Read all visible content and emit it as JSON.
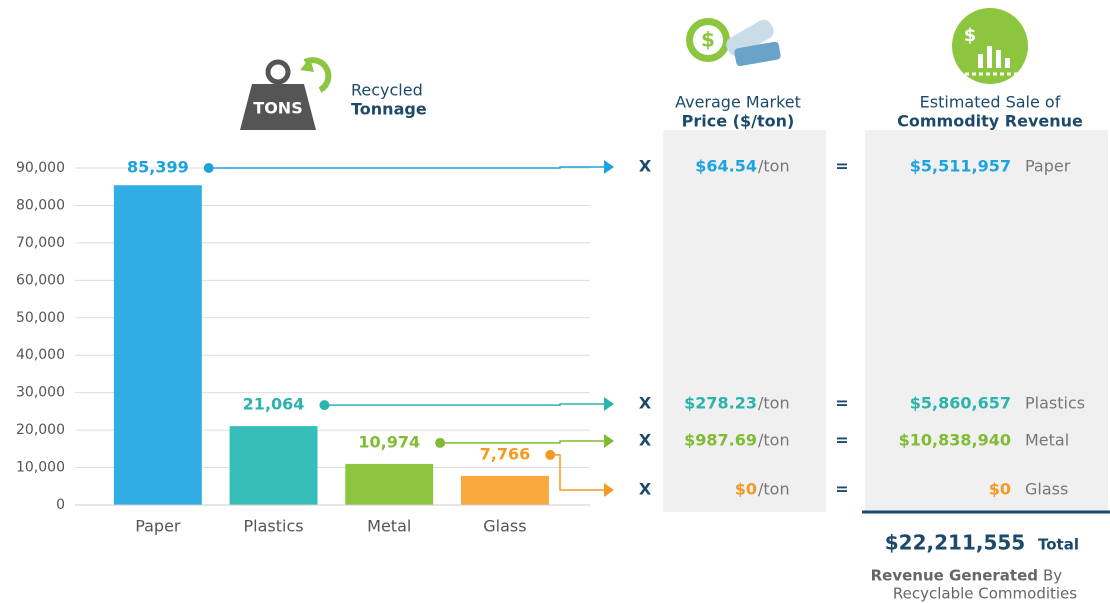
{
  "chart_data": {
    "type": "bar",
    "heading": [
      "Recycled",
      "Tonnage"
    ],
    "icon_text": "TONS",
    "categories": [
      "Paper",
      "Plastics",
      "Metal",
      "Glass"
    ],
    "values": [
      85399,
      21064,
      10974,
      7766
    ],
    "value_labels": [
      "85,399",
      "21,064",
      "10,974",
      "7,766"
    ],
    "colors": [
      "#31ade3",
      "#36bfb8",
      "#8cc63f",
      "#f8a83c"
    ],
    "label_colors": [
      "#1fa3dc",
      "#2bb3ad",
      "#7fbb33",
      "#f39a24"
    ],
    "ylim": [
      0,
      90000
    ],
    "yticks": [
      0,
      {
        "value": 10000,
        "label": "10,000"
      },
      {
        "value": 20000,
        "label": "20,000"
      },
      {
        "value": 30000,
        "label": "30,000"
      },
      {
        "value": 40000,
        "label": "40,000"
      },
      {
        "value": 50000,
        "label": "50,000"
      },
      {
        "value": 60000,
        "label": "60,000"
      },
      {
        "value": 70000,
        "label": "70,000"
      },
      {
        "value": 80000,
        "label": "80,000"
      },
      {
        "value": 90000,
        "label": "90,000"
      }
    ],
    "grid": true,
    "multiply_sign": "X",
    "equals_sign": "=",
    "prices": {
      "heading": [
        "Average Market",
        "Price ($/ton)"
      ],
      "values": [
        64.54,
        278.23,
        987.69,
        0
      ],
      "value_labels": [
        "$64.54",
        "$278.23",
        "$987.69",
        "$0"
      ],
      "unit": "/ton"
    },
    "revenue": {
      "heading": [
        "Estimated Sale of",
        "Commodity Revenue"
      ],
      "values": [
        5511957,
        5860657,
        10838940,
        0
      ],
      "value_labels": [
        "$5,511,957",
        "$5,860,657",
        "$10,838,940",
        "$0"
      ]
    },
    "total": {
      "value": 22211555,
      "value_label": "$22,211,555",
      "label": "Total"
    },
    "footnote": [
      "Revenue Generated",
      "By",
      "Recyclable Commodities"
    ]
  }
}
